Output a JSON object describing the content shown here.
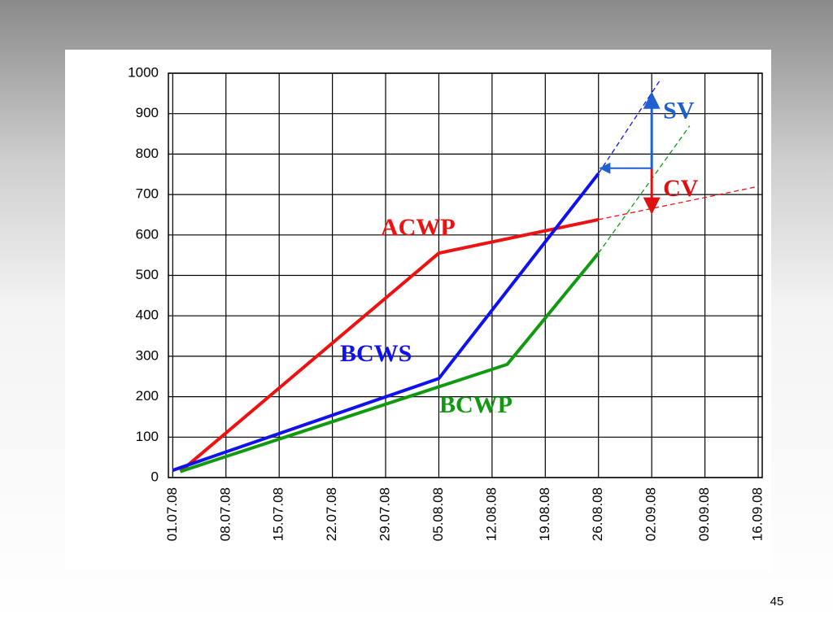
{
  "chart_data": {
    "type": "line",
    "xlim": [
      "2008-06-30",
      "2008-09-16"
    ],
    "xticks": [
      {
        "value": "2008-07-01",
        "label": "01.07.08"
      },
      {
        "value": "2008-07-08",
        "label": "08.07.08"
      },
      {
        "value": "2008-07-15",
        "label": "15.07.08"
      },
      {
        "value": "2008-07-22",
        "label": "22.07.08"
      },
      {
        "value": "2008-07-29",
        "label": "29.07.08"
      },
      {
        "value": "2008-08-05",
        "label": "05.08.08"
      },
      {
        "value": "2008-08-12",
        "label": "12.08.08"
      },
      {
        "value": "2008-08-19",
        "label": "19.08.08"
      },
      {
        "value": "2008-08-26",
        "label": "26.08.08"
      },
      {
        "value": "2008-09-02",
        "label": "02.09.08"
      },
      {
        "value": "2008-09-09",
        "label": "09.09.08"
      },
      {
        "value": "2008-09-16",
        "label": "16.09.08"
      }
    ],
    "ylim": [
      0,
      1000
    ],
    "yticks": [
      0,
      100,
      200,
      300,
      400,
      500,
      600,
      700,
      800,
      900,
      1000
    ],
    "grid": true,
    "series": [
      {
        "name": "ACWP",
        "color": "#ee1111",
        "x": [
          "2008-07-02",
          "2008-08-05",
          "2008-08-26"
        ],
        "values": [
          15,
          555,
          638
        ],
        "projection": {
          "x": [
            "2008-08-26",
            "2008-09-16"
          ],
          "values": [
            638,
            720
          ]
        }
      },
      {
        "name": "BCWS",
        "color": "#1111ee",
        "x": [
          "2008-07-01",
          "2008-08-05",
          "2008-08-26"
        ],
        "values": [
          18,
          245,
          752
        ],
        "projection": {
          "x": [
            "2008-08-26",
            "2008-09-03"
          ],
          "values": [
            752,
            980
          ]
        }
      },
      {
        "name": "BCWP",
        "color": "#119911",
        "x": [
          "2008-07-02",
          "2008-08-14",
          "2008-08-26"
        ],
        "values": [
          15,
          280,
          555
        ],
        "projection": {
          "x": [
            "2008-08-26",
            "2008-09-07"
          ],
          "values": [
            555,
            870
          ]
        }
      }
    ],
    "variances": [
      {
        "label": "SV",
        "color": "#1f5fcf",
        "x": "2008-09-02",
        "from": 765,
        "to": 950
      },
      {
        "label": "CV",
        "color": "#dd1111",
        "x": "2008-09-02",
        "from": 765,
        "to": 655
      }
    ]
  },
  "page_number": "45"
}
